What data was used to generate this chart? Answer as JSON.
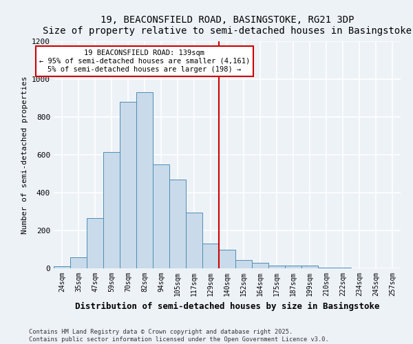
{
  "title1": "19, BEACONSFIELD ROAD, BASINGSTOKE, RG21 3DP",
  "title2": "Size of property relative to semi-detached houses in Basingstoke",
  "xlabel": "Distribution of semi-detached houses by size in Basingstoke",
  "ylabel": "Number of semi-detached properties",
  "bar_labels": [
    "24sqm",
    "35sqm",
    "47sqm",
    "59sqm",
    "70sqm",
    "82sqm",
    "94sqm",
    "105sqm",
    "117sqm",
    "129sqm",
    "140sqm",
    "152sqm",
    "164sqm",
    "175sqm",
    "187sqm",
    "199sqm",
    "210sqm",
    "222sqm",
    "234sqm",
    "245sqm",
    "257sqm"
  ],
  "bar_heights": [
    10,
    60,
    265,
    615,
    880,
    930,
    550,
    470,
    295,
    130,
    100,
    45,
    30,
    15,
    15,
    15,
    5,
    2,
    1,
    1,
    1
  ],
  "bar_color": "#c9daea",
  "bar_edge_color": "#4d8db3",
  "vline_x_index": 10,
  "vline_color": "#cc0000",
  "annotation_title": "19 BEACONSFIELD ROAD: 139sqm",
  "annotation_line1": "← 95% of semi-detached houses are smaller (4,161)",
  "annotation_line2": "5% of semi-detached houses are larger (198) →",
  "ylim": [
    0,
    1200
  ],
  "yticks": [
    0,
    200,
    400,
    600,
    800,
    1000,
    1200
  ],
  "footer1": "Contains HM Land Registry data © Crown copyright and database right 2025.",
  "footer2": "Contains public sector information licensed under the Open Government Licence v3.0.",
  "bg_color": "#edf2f7",
  "grid_color": "#ffffff"
}
